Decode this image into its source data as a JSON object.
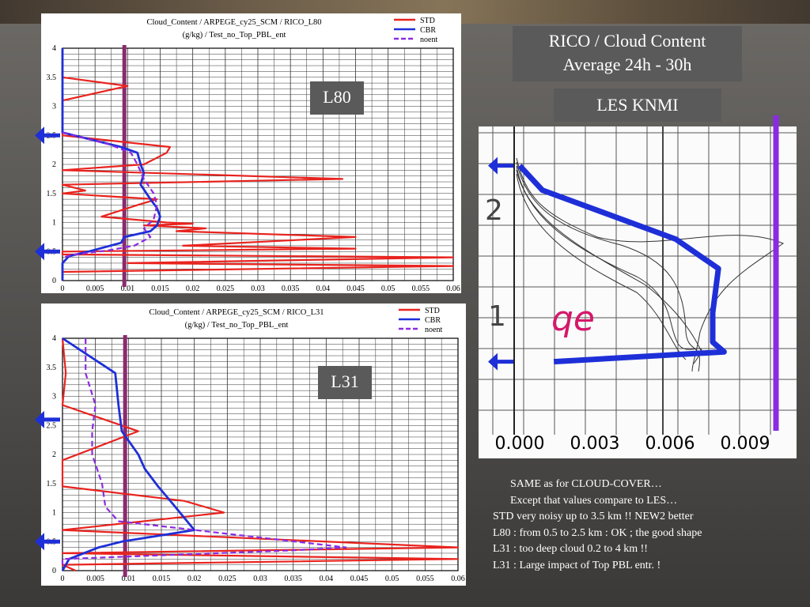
{
  "slide": {
    "title_line1": "RICO / Cloud Content",
    "title_line2": "Average  24h - 30h",
    "les_label": "LES KNMI",
    "label_l80": "L80",
    "label_l31": "L31",
    "notes": [
      "SAME as for CLOUD-COVER…",
      "Except that values compare to LES…",
      "STD very noisy up to 3.5 km !!    NEW2 better",
      "L80 : from 0.5 to 2.5 km : OK ;   the good shape",
      "L31 : too deep cloud 0.2 to 4 km !!",
      "L31 : Large impact of Top PBL entr. !"
    ]
  },
  "colors": {
    "std": "#e8231e",
    "cbr": "#1e2fd8",
    "noent": "#8a2be2",
    "ref_line": "#8b2a6e",
    "arrow": "#1e2fd8"
  },
  "chart_data": [
    {
      "type": "line",
      "title": "Cloud_Content / ARPEGE_cy25_SCM / RICO_L80",
      "subtitle": "(g/kg) / Test_no_Top_PBL_ent",
      "legend_position": "top-right",
      "xlim": [
        0,
        0.06
      ],
      "ylim": [
        0,
        4
      ],
      "x_ticks": [
        "0",
        "0.005",
        "0.01",
        "0.015",
        "0.02",
        "0.025",
        "0.03",
        "0.035",
        "0.04",
        "0.045",
        "0.05",
        "0.055",
        "0.06"
      ],
      "y_ticks": [
        "0",
        "0.5",
        "1",
        "1.5",
        "2",
        "2.5",
        "3",
        "3.5",
        "4"
      ],
      "grid": true,
      "ref_x": 0.0095,
      "arrows_y": [
        2.5,
        0.5
      ],
      "series": [
        {
          "name": "STD",
          "color": "#e8231e",
          "points": [
            [
              0,
              4
            ],
            [
              0,
              3.5
            ],
            [
              0.01,
              3.35
            ],
            [
              0,
              3.1
            ],
            [
              0,
              2.5
            ],
            [
              0.0165,
              2.3
            ],
            [
              0.016,
              2.2
            ],
            [
              0.0125,
              2.0
            ],
            [
              0,
              1.9
            ],
            [
              0.043,
              1.75
            ],
            [
              0,
              1.65
            ],
            [
              0.0035,
              1.55
            ],
            [
              0,
              1.5
            ],
            [
              0.0145,
              1.4
            ],
            [
              0.0115,
              1.3
            ],
            [
              0.006,
              1.1
            ],
            [
              0.016,
              1.0
            ],
            [
              0.02,
              0.98
            ],
            [
              0.0125,
              0.95
            ],
            [
              0.022,
              0.9
            ],
            [
              0.0175,
              0.85
            ],
            [
              0.045,
              0.75
            ],
            [
              0.0185,
              0.6
            ],
            [
              0.045,
              0.55
            ],
            [
              0,
              0.5
            ],
            [
              0,
              0.45
            ],
            [
              0.06,
              0.4
            ],
            [
              0.01,
              0.3
            ],
            [
              0.06,
              0.25
            ],
            [
              0,
              0.15
            ],
            [
              0,
              0
            ]
          ]
        },
        {
          "name": "CBR",
          "color": "#1e2fd8",
          "points": [
            [
              0,
              4
            ],
            [
              0,
              2.55
            ],
            [
              0.009,
              2.3
            ],
            [
              0.0115,
              2.2
            ],
            [
              0.012,
              2.0
            ],
            [
              0.0125,
              1.85
            ],
            [
              0.012,
              1.65
            ],
            [
              0.0135,
              1.4
            ],
            [
              0.0145,
              1.25
            ],
            [
              0.015,
              1.1
            ],
            [
              0.0145,
              0.95
            ],
            [
              0.0135,
              0.85
            ],
            [
              0.0095,
              0.75
            ],
            [
              0.009,
              0.65
            ],
            [
              0.004,
              0.5
            ],
            [
              0.001,
              0.42
            ],
            [
              0,
              0.3
            ],
            [
              0,
              0
            ]
          ]
        },
        {
          "name": "noent",
          "color": "#8a2be2",
          "dashed": true,
          "points": [
            [
              0,
              2.55
            ],
            [
              0.007,
              2.35
            ],
            [
              0.0105,
              2.2
            ],
            [
              0.0115,
              2.0
            ],
            [
              0.0125,
              1.75
            ],
            [
              0.014,
              1.5
            ],
            [
              0.0145,
              1.3
            ],
            [
              0.014,
              1.05
            ],
            [
              0.0125,
              0.9
            ],
            [
              0.0135,
              0.75
            ],
            [
              0.011,
              0.6
            ],
            [
              0.007,
              0.52
            ],
            [
              0.002,
              0.45
            ],
            [
              0,
              0.4
            ]
          ]
        }
      ]
    },
    {
      "type": "line",
      "title": "Cloud_Content / ARPEGE_cy25_SCM / RICO_L31",
      "subtitle": "(g/kg) / Test_no_Top_PBL_ent",
      "legend_position": "top-right",
      "xlim": [
        0,
        0.06
      ],
      "ylim": [
        0,
        4
      ],
      "x_ticks": [
        "0",
        "0.005",
        "0.01",
        "0.015",
        "0.02",
        "0.025",
        "0.03",
        "0.035",
        "0.04",
        "0.045",
        "0.05",
        "0.055",
        "0.06"
      ],
      "y_ticks": [
        "0",
        "0.5",
        "1",
        "1.5",
        "2",
        "2.5",
        "3",
        "3.5",
        "4"
      ],
      "grid": true,
      "ref_x": 0.0095,
      "arrows_y": [
        2.6,
        0.5
      ],
      "series": [
        {
          "name": "STD",
          "color": "#e8231e",
          "points": [
            [
              0,
              4
            ],
            [
              0.0005,
              3.4
            ],
            [
              0,
              2.85
            ],
            [
              0.0115,
              2.4
            ],
            [
              0,
              1.9
            ],
            [
              0,
              1.45
            ],
            [
              0.0185,
              1.2
            ],
            [
              0.0245,
              1.0
            ],
            [
              0,
              0.7
            ],
            [
              0.06,
              0.4
            ],
            [
              0,
              0.3
            ],
            [
              0.06,
              0.2
            ],
            [
              0,
              0.1
            ],
            [
              0.002,
              0
            ]
          ]
        },
        {
          "name": "CBR",
          "color": "#1e2fd8",
          "points": [
            [
              0,
              4
            ],
            [
              0.008,
              3.4
            ],
            [
              0.0085,
              2.85
            ],
            [
              0.009,
              2.4
            ],
            [
              0.0115,
              2.0
            ],
            [
              0.0125,
              1.75
            ],
            [
              0.0145,
              1.45
            ],
            [
              0.016,
              1.25
            ],
            [
              0.02,
              0.7
            ],
            [
              0.009,
              0.5
            ],
            [
              0.0055,
              0.4
            ],
            [
              0.001,
              0.2
            ],
            [
              0,
              0
            ]
          ]
        },
        {
          "name": "noent",
          "color": "#8a2be2",
          "dashed": true,
          "points": [
            [
              0.0035,
              4
            ],
            [
              0.0035,
              3.4
            ],
            [
              0.005,
              2.85
            ],
            [
              0.0045,
              2.4
            ],
            [
              0.0045,
              2.0
            ],
            [
              0.006,
              1.5
            ],
            [
              0.0065,
              1.1
            ],
            [
              0.0085,
              0.85
            ],
            [
              0.043,
              0.4
            ],
            [
              0.035,
              0.35
            ],
            [
              0,
              0.2
            ],
            [
              0,
              0.1
            ]
          ]
        }
      ]
    },
    {
      "type": "line",
      "title": "",
      "xlim": [
        0,
        0.009
      ],
      "x_ticks": [
        "0.000",
        "0.003",
        "0.006",
        "0.009"
      ],
      "y_tick_labels": [
        "2",
        "1"
      ],
      "annotation": "qe",
      "ref_x": 0.009,
      "arrows_y": [
        2.6,
        0.6
      ],
      "series": [
        {
          "name": "",
          "color": "#1e2fd8",
          "points": [
            [
              0,
              2.6
            ],
            [
              0.0008,
              2.35
            ],
            [
              0.0055,
              1.85
            ],
            [
              0.007,
              1.55
            ],
            [
              0.0068,
              1.1
            ],
            [
              0.0068,
              0.8
            ],
            [
              0.0072,
              0.7
            ],
            [
              0.0012,
              0.6
            ]
          ]
        }
      ]
    }
  ]
}
